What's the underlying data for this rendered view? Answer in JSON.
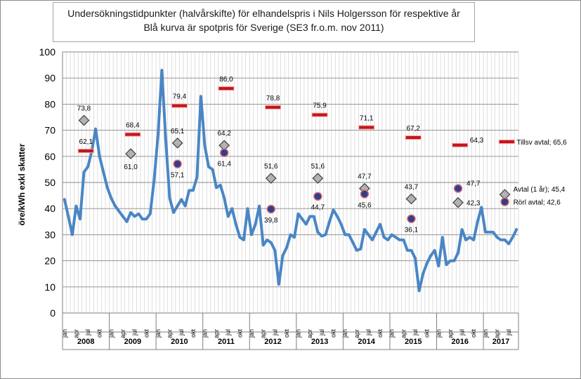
{
  "chart_data": {
    "type": "line",
    "title": "Undersökningstidpunkter  (halvårskifte) för elhandelspris i Nils Holgersson för respektive år",
    "subtitle": "Blå kurva är spotpris för Sverige (SE3 fr.o.m. nov 2011)",
    "ylabel": "öre/kWh exkl skatter",
    "xlabel": "",
    "ylim": [
      0,
      100
    ],
    "yticks": [
      0,
      10,
      20,
      30,
      40,
      50,
      60,
      70,
      80,
      90,
      100
    ],
    "grid": true,
    "years": [
      "2008",
      "2009",
      "2010",
      "2011",
      "2012",
      "2013",
      "2014",
      "2015",
      "2016",
      "2017"
    ],
    "month_labels": [
      "jan",
      "apr",
      "jul",
      "okt"
    ],
    "spot_series": {
      "name": "Spotpris",
      "color": "#4a86c5",
      "values": [
        43.5,
        37,
        30,
        41,
        36,
        54,
        56,
        62,
        70.5,
        60,
        54,
        48,
        44,
        41,
        39,
        37,
        35,
        38.5,
        37,
        38,
        36,
        36,
        38,
        51,
        68,
        93,
        66,
        44,
        38.5,
        41,
        43.5,
        41,
        47,
        47,
        52,
        83,
        64,
        56,
        55,
        48,
        49,
        44,
        37,
        40,
        34,
        29,
        28,
        40,
        30,
        34,
        41,
        26,
        28,
        27,
        24,
        11,
        22,
        25,
        30,
        29,
        38,
        36,
        34,
        37,
        37,
        31,
        29.5,
        30,
        35,
        39.5,
        37,
        34,
        30,
        30,
        27,
        24,
        24.5,
        32,
        30,
        28,
        31,
        34,
        29,
        28,
        30,
        29,
        28,
        28,
        24,
        24,
        21,
        8.5,
        15,
        19,
        22,
        24,
        18,
        29,
        18.5,
        20,
        20,
        23,
        32,
        28,
        29,
        28,
        35,
        40.5,
        31,
        31,
        31,
        29,
        28,
        28,
        26.5,
        29,
        32
      ]
    },
    "avtal_points": [
      {
        "year": "2008",
        "value": 73.8,
        "label": "73,8"
      },
      {
        "year": "2009",
        "value": 61.0,
        "label": "61,0"
      },
      {
        "year": "2010",
        "value": 65.1,
        "label": "65,1"
      },
      {
        "year": "2011",
        "value": 64.2,
        "label": "64,2"
      },
      {
        "year": "2012",
        "value": 51.6,
        "label": "51,6"
      },
      {
        "year": "2013",
        "value": 51.6,
        "label": "51,6"
      },
      {
        "year": "2014",
        "value": 47.7,
        "label": "47,7"
      },
      {
        "year": "2015",
        "value": 43.7,
        "label": "43,7"
      },
      {
        "year": "2016",
        "value": 42.3,
        "label": "42,3"
      },
      {
        "year": "2017",
        "value": 45.4,
        "label": "Avtal (1 år); 45,4"
      }
    ],
    "tillsv_points": [
      {
        "year": "2008",
        "value": 62.1,
        "label": "62,1"
      },
      {
        "year": "2009",
        "value": 68.4,
        "label": "68,4"
      },
      {
        "year": "2010",
        "value": 79.4,
        "label": "79,4"
      },
      {
        "year": "2011",
        "value": 86.0,
        "label": "86,0"
      },
      {
        "year": "2012",
        "value": 78.8,
        "label": "78,8"
      },
      {
        "year": "2013",
        "value": 75.9,
        "label": "75,9"
      },
      {
        "year": "2014",
        "value": 71.1,
        "label": "71,1"
      },
      {
        "year": "2015",
        "value": 67.2,
        "label": "67,2"
      },
      {
        "year": "2016",
        "value": 64.3,
        "label": "64,3"
      },
      {
        "year": "2017",
        "value": 65.6,
        "label": "Tillsv avtal; 65,6"
      }
    ],
    "rorl_points": [
      {
        "year": "2010",
        "value": 57.1,
        "label": "57,1"
      },
      {
        "year": "2011",
        "value": 61.4,
        "label": "61,4"
      },
      {
        "year": "2012",
        "value": 39.8,
        "label": "39,8"
      },
      {
        "year": "2013",
        "value": 44.7,
        "label": "44,7"
      },
      {
        "year": "2014",
        "value": 45.6,
        "label": "45,6"
      },
      {
        "year": "2015",
        "value": 36.1,
        "label": "36,1"
      },
      {
        "year": "2016",
        "value": 47.7,
        "label": "47,7"
      },
      {
        "year": "2017",
        "value": 42.6,
        "label": "Rörl avtal; 42,6"
      }
    ],
    "colors": {
      "spot": "#4a86c5",
      "tillsv_fill": "#c0161d",
      "tillsv_border": "#ff9999",
      "rorl_fill": "#2e3f8f",
      "rorl_border": "#e07070",
      "avtal_fill": "#b2b2b2",
      "avtal_border": "#404040",
      "grid": "#c9c9c9"
    }
  }
}
